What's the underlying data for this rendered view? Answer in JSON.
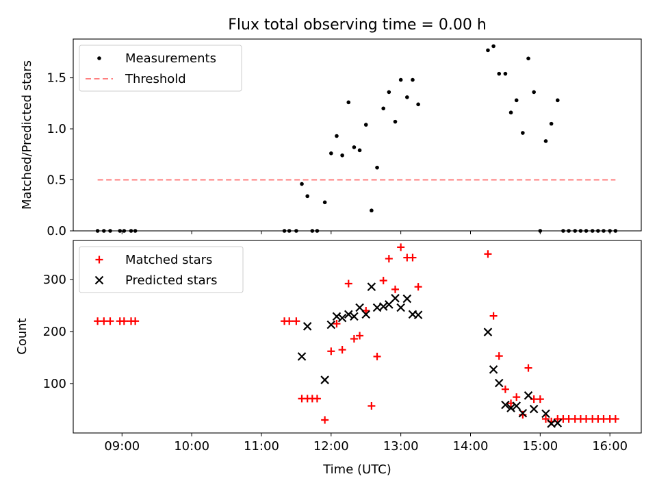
{
  "figure_title": "Flux total observing time = 0.00 h",
  "chart_data": [
    {
      "type": "scatter",
      "ylabel": "Matched/Predicted stars",
      "xlabel": "",
      "xlim": [
        8.3,
        16.45
      ],
      "ylim": [
        0,
        1.88
      ],
      "x_ticks": [
        9,
        10,
        11,
        12,
        13,
        14,
        15,
        16
      ],
      "y_ticks": [
        0.0,
        0.5,
        1.0,
        1.5
      ],
      "y_tick_labels": [
        "0.0",
        "0.5",
        "1.0",
        "1.5"
      ],
      "legend_position": "upper-left",
      "series": [
        {
          "name": "Measurements",
          "marker": "dot",
          "color": "#000000",
          "points": [
            [
              8.65,
              0
            ],
            [
              8.74,
              0
            ],
            [
              8.83,
              0
            ],
            [
              8.97,
              0
            ],
            [
              9.03,
              0
            ],
            [
              9.13,
              0
            ],
            [
              9.19,
              0
            ],
            [
              11.33,
              0
            ],
            [
              11.4,
              0
            ],
            [
              11.5,
              0
            ],
            [
              11.73,
              0
            ],
            [
              11.8,
              0
            ],
            [
              11.58,
              0.46
            ],
            [
              11.66,
              0.34
            ],
            [
              11.91,
              0.28
            ],
            [
              12.0,
              0.76
            ],
            [
              12.08,
              0.93
            ],
            [
              12.16,
              0.74
            ],
            [
              12.25,
              1.26
            ],
            [
              12.33,
              0.82
            ],
            [
              12.41,
              0.79
            ],
            [
              12.5,
              1.04
            ],
            [
              12.58,
              0.2
            ],
            [
              12.66,
              0.62
            ],
            [
              12.75,
              1.2
            ],
            [
              12.83,
              1.36
            ],
            [
              12.92,
              1.07
            ],
            [
              13.0,
              1.48
            ],
            [
              13.09,
              1.31
            ],
            [
              13.17,
              1.48
            ],
            [
              13.25,
              1.24
            ],
            [
              14.25,
              1.77
            ],
            [
              14.33,
              1.81
            ],
            [
              14.41,
              1.54
            ],
            [
              14.5,
              1.54
            ],
            [
              14.58,
              1.16
            ],
            [
              14.66,
              1.28
            ],
            [
              14.75,
              0.96
            ],
            [
              14.83,
              1.69
            ],
            [
              14.91,
              1.36
            ],
            [
              15.0,
              0
            ],
            [
              15.08,
              0.88
            ],
            [
              15.16,
              1.05
            ],
            [
              15.25,
              1.28
            ],
            [
              15.33,
              0
            ],
            [
              15.41,
              0
            ],
            [
              15.5,
              0
            ],
            [
              15.58,
              0
            ],
            [
              15.66,
              0
            ],
            [
              15.75,
              0
            ],
            [
              15.83,
              0
            ],
            [
              15.91,
              0
            ],
            [
              16.0,
              0
            ],
            [
              16.08,
              0
            ]
          ]
        },
        {
          "name": "Threshold",
          "marker": "dashed-line",
          "color": "#ff7f7f",
          "points": [
            [
              8.65,
              0.5
            ],
            [
              16.08,
              0.5
            ]
          ]
        }
      ]
    },
    {
      "type": "scatter",
      "ylabel": "Count",
      "xlabel": "Time (UTC)",
      "xlim": [
        8.3,
        16.45
      ],
      "ylim": [
        5,
        375
      ],
      "x_ticks": [
        9,
        10,
        11,
        12,
        13,
        14,
        15,
        16
      ],
      "x_tick_labels": [
        "09:00",
        "10:00",
        "11:00",
        "12:00",
        "13:00",
        "14:00",
        "15:00",
        "16:00"
      ],
      "y_ticks": [
        100,
        200,
        300
      ],
      "y_tick_labels": [
        "100",
        "200",
        "300"
      ],
      "legend_position": "upper-left",
      "series": [
        {
          "name": "Matched stars",
          "marker": "plus",
          "color": "#ff0000",
          "points": [
            [
              8.65,
              220
            ],
            [
              8.74,
              220
            ],
            [
              8.83,
              220
            ],
            [
              8.97,
              220
            ],
            [
              9.03,
              220
            ],
            [
              9.13,
              220
            ],
            [
              9.19,
              220
            ],
            [
              11.33,
              220
            ],
            [
              11.4,
              220
            ],
            [
              11.5,
              220
            ],
            [
              11.58,
              71
            ],
            [
              11.66,
              71
            ],
            [
              11.73,
              71
            ],
            [
              11.8,
              71
            ],
            [
              11.91,
              30
            ],
            [
              12.0,
              162
            ],
            [
              12.08,
              215
            ],
            [
              12.16,
              165
            ],
            [
              12.25,
              292
            ],
            [
              12.33,
              186
            ],
            [
              12.41,
              192
            ],
            [
              12.5,
              240
            ],
            [
              12.58,
              57
            ],
            [
              12.66,
              152
            ],
            [
              12.75,
              298
            ],
            [
              12.83,
              340
            ],
            [
              12.92,
              281
            ],
            [
              13.0,
              362
            ],
            [
              13.09,
              342
            ],
            [
              13.17,
              342
            ],
            [
              13.25,
              286
            ],
            [
              14.25,
              349
            ],
            [
              14.33,
              230
            ],
            [
              14.41,
              153
            ],
            [
              14.5,
              89
            ],
            [
              14.58,
              62
            ],
            [
              14.66,
              74
            ],
            [
              14.75,
              40
            ],
            [
              14.83,
              130
            ],
            [
              14.91,
              70
            ],
            [
              15.0,
              70
            ],
            [
              15.08,
              32
            ],
            [
              15.16,
              27
            ],
            [
              15.25,
              32
            ],
            [
              15.33,
              32
            ],
            [
              15.41,
              32
            ],
            [
              15.5,
              32
            ],
            [
              15.58,
              32
            ],
            [
              15.66,
              32
            ],
            [
              15.75,
              32
            ],
            [
              15.83,
              32
            ],
            [
              15.91,
              32
            ],
            [
              16.0,
              32
            ],
            [
              16.08,
              32
            ]
          ]
        },
        {
          "name": "Predicted stars",
          "marker": "x",
          "color": "#000000",
          "points": [
            [
              11.58,
              152
            ],
            [
              11.66,
              210
            ],
            [
              11.91,
              107
            ],
            [
              12.0,
              213
            ],
            [
              12.08,
              229
            ],
            [
              12.16,
              226
            ],
            [
              12.25,
              233
            ],
            [
              12.33,
              229
            ],
            [
              12.41,
              246
            ],
            [
              12.5,
              233
            ],
            [
              12.58,
              286
            ],
            [
              12.66,
              246
            ],
            [
              12.75,
              248
            ],
            [
              12.83,
              252
            ],
            [
              12.92,
              264
            ],
            [
              13.0,
              246
            ],
            [
              13.09,
              263
            ],
            [
              13.17,
              233
            ],
            [
              13.25,
              232
            ],
            [
              14.25,
              199
            ],
            [
              14.33,
              127
            ],
            [
              14.41,
              101
            ],
            [
              14.5,
              59
            ],
            [
              14.58,
              53
            ],
            [
              14.66,
              57
            ],
            [
              14.75,
              43
            ],
            [
              14.83,
              77
            ],
            [
              14.91,
              51
            ],
            [
              15.08,
              42
            ],
            [
              15.16,
              23
            ],
            [
              15.25,
              24
            ]
          ]
        }
      ]
    }
  ]
}
